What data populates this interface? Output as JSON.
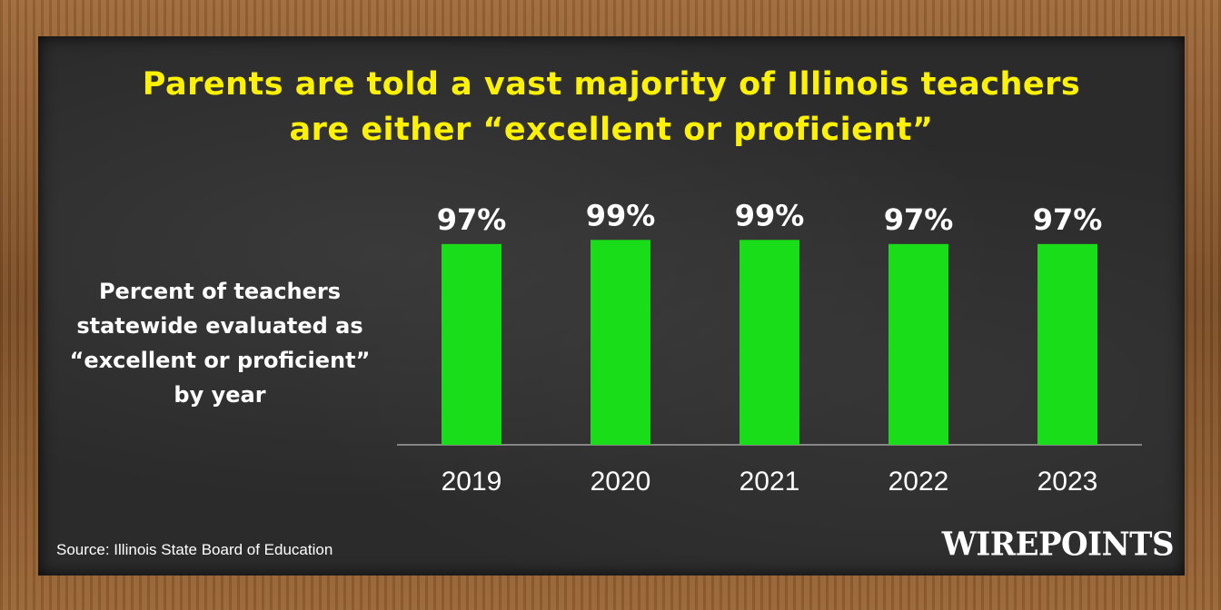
{
  "chart_data": {
    "type": "bar",
    "title": "Parents are told a vast majority of Illinois teachers are either “excellent or proficient”",
    "title_lines": [
      "Parents are told a vast majority of Illinois teachers",
      "are either “excellent or proficient”"
    ],
    "ylabel": "Percent of teachers statewide evaluated as “excellent or proficient” by year",
    "categories": [
      "2019",
      "2020",
      "2021",
      "2022",
      "2023"
    ],
    "values": [
      97,
      99,
      99,
      97,
      97
    ],
    "data_labels": [
      "97%",
      "99%",
      "99%",
      "97%",
      "97%"
    ],
    "ylim": [
      0,
      100
    ],
    "bar_color": "#19dd19",
    "grid": false,
    "legend": "none"
  },
  "colors": {
    "title": "#fff200",
    "board": "#2b2b2b",
    "frame": "#8a5a30",
    "text": "#ffffff"
  },
  "source": "Source: Illinois State Board of Education",
  "brand": "WIREPOINTS"
}
